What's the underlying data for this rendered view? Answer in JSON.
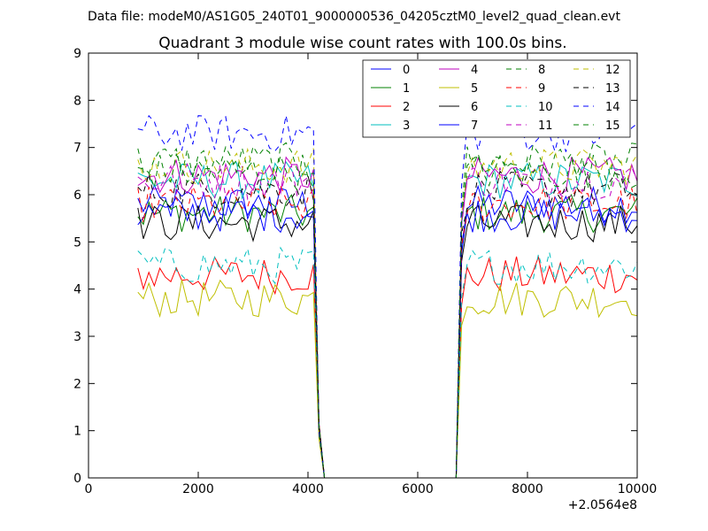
{
  "figure": {
    "suptitle": "Data file: modeM0/AS1G05_240T01_9000000536_04205cztM0_level2_quad_clean.evt"
  },
  "chart_data": {
    "type": "line",
    "title": "Quadrant 3 module wise count rates with 100.0s bins.",
    "xlabel": "",
    "ylabel": "",
    "x_offset_label": "+2.0564e8",
    "xlim": [
      0,
      10000
    ],
    "ylim": [
      0,
      9
    ],
    "xticks": [
      0,
      2000,
      4000,
      6000,
      8000,
      10000
    ],
    "yticks": [
      0,
      1,
      2,
      3,
      4,
      5,
      6,
      7,
      8,
      9
    ],
    "grid": false,
    "legend": {
      "placement": "top-right",
      "columns": 4
    },
    "x": [
      900,
      1000,
      1100,
      1200,
      1300,
      1400,
      1500,
      1600,
      1700,
      1800,
      1900,
      2000,
      2100,
      2200,
      2300,
      2400,
      2500,
      2600,
      2700,
      2800,
      2900,
      3000,
      3100,
      3200,
      3300,
      3400,
      3500,
      3600,
      3700,
      3800,
      3900,
      4000,
      4100,
      4200,
      4300,
      4400,
      4500,
      4600,
      4700,
      4800,
      4900,
      5000,
      5100,
      5200,
      5300,
      5400,
      5500,
      5600,
      5700,
      5800,
      5900,
      6000,
      6100,
      6200,
      6300,
      6400,
      6500,
      6600,
      6700,
      6800,
      6900,
      7000,
      7100,
      7200,
      7300,
      7400,
      7500,
      7600,
      7700,
      7800,
      7900,
      8000,
      8100,
      8200,
      8300,
      8400,
      8500,
      8600,
      8700,
      8800,
      8900,
      9000,
      9100,
      9200,
      9300,
      9400,
      9500,
      9600,
      9700,
      9800,
      9900,
      10000
    ],
    "series": [
      {
        "name": "0",
        "color": "#0000ff",
        "dash": "solid",
        "base": 5.8
      },
      {
        "name": "1",
        "color": "#008000",
        "dash": "solid",
        "base": 5.6
      },
      {
        "name": "2",
        "color": "#ff0000",
        "dash": "solid",
        "base": 4.3
      },
      {
        "name": "3",
        "color": "#00bfbf",
        "dash": "solid",
        "base": 6.3
      },
      {
        "name": "4",
        "color": "#bf00bf",
        "dash": "solid",
        "base": 6.4
      },
      {
        "name": "5",
        "color": "#bfbf00",
        "dash": "solid",
        "base": 3.8
      },
      {
        "name": "6",
        "color": "#000000",
        "dash": "solid",
        "base": 5.4
      },
      {
        "name": "7",
        "color": "#0000ff",
        "dash": "solid",
        "base": 5.6
      },
      {
        "name": "8",
        "color": "#008000",
        "dash": "dashed",
        "base": 6.7
      },
      {
        "name": "9",
        "color": "#ff0000",
        "dash": "dashed",
        "base": 5.8
      },
      {
        "name": "10",
        "color": "#00bfbf",
        "dash": "dashed",
        "base": 4.5
      },
      {
        "name": "11",
        "color": "#bf00bf",
        "dash": "dashed",
        "base": 6.3
      },
      {
        "name": "12",
        "color": "#bfbf00",
        "dash": "dashed",
        "base": 6.6
      },
      {
        "name": "13",
        "color": "#000000",
        "dash": "dashed",
        "base": 6.1
      },
      {
        "name": "14",
        "color": "#0000ff",
        "dash": "dashed",
        "base": 7.3
      },
      {
        "name": "15",
        "color": "#008000",
        "dash": "dashed",
        "base": 6.5
      }
    ]
  }
}
